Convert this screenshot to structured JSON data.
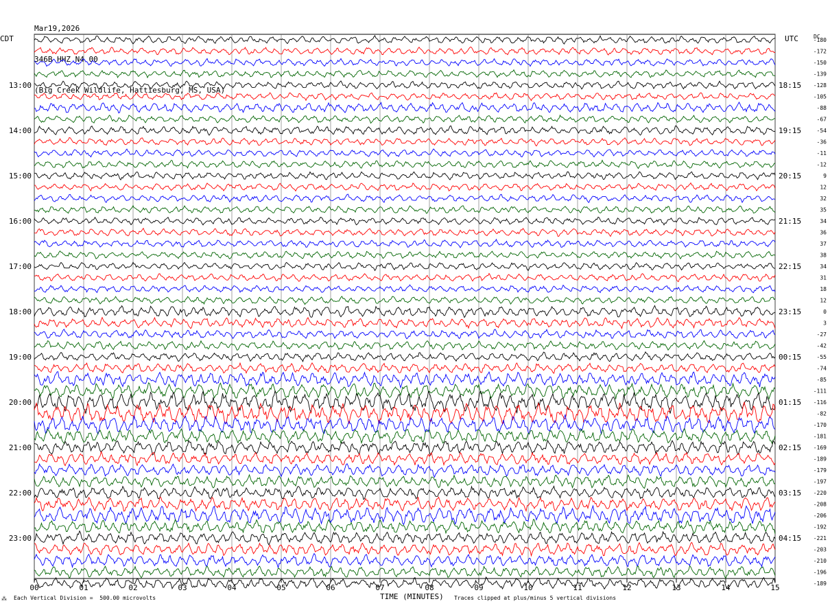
{
  "header": {
    "date": "Mar19,2026",
    "station": "346B HHZ N4 00",
    "location": "(Big Creek Wildlife, Hattiesburg, MS, USA)"
  },
  "left_tz": "CDT",
  "right_tz": "UTC",
  "dc_label": "DC",
  "footer": {
    "division": "Each Vertical Division =  500.00 microvolts",
    "time_label": "TIME (MINUTES)",
    "clip": "Traces clipped at plus/minus 5 vertical divisions"
  },
  "colors": {
    "trace_cycle": [
      "#000000",
      "#ff0000",
      "#0000ff",
      "#006400"
    ],
    "grid": "#000000"
  },
  "chart_data": {
    "type": "line",
    "title": "",
    "xlabel": "TIME (MINUTES)",
    "xlim": [
      0,
      15
    ],
    "x_ticks": [
      "00",
      "01",
      "02",
      "03",
      "04",
      "05",
      "06",
      "07",
      "08",
      "09",
      "10",
      "11",
      "12",
      "13",
      "14",
      "15"
    ],
    "rows_per_hour": 4,
    "minutes_per_row": 15,
    "left_hour_labels": [
      "13:00",
      "14:00",
      "15:00",
      "16:00",
      "17:00",
      "18:00",
      "19:00",
      "20:00",
      "21:00",
      "22:00",
      "23:00"
    ],
    "right_hour_labels": [
      "18:15",
      "19:15",
      "20:15",
      "21:15",
      "22:15",
      "23:15",
      "00:15",
      "01:15",
      "02:15",
      "03:15",
      "04:15"
    ],
    "dc_offsets": [
      "-180",
      "-172",
      "-150",
      "-139",
      "-128",
      "-105",
      "-88",
      "-67",
      "-54",
      "-36",
      "-11",
      "-12",
      "9",
      "12",
      "32",
      "35",
      "34",
      "36",
      "37",
      "38",
      "34",
      "31",
      "18",
      "12",
      "0",
      "3",
      "-27",
      "-42",
      "-55",
      "-74",
      "-85",
      "-111",
      "-116",
      "-82",
      "-170",
      "-181",
      "-169",
      "-189",
      "-179",
      "-197",
      "-220",
      "-208",
      "-206",
      "-192",
      "-221",
      "-203",
      "-210",
      "-196",
      "-189"
    ],
    "row_amplitude": [
      0.3,
      0.3,
      0.3,
      0.3,
      0.3,
      0.3,
      0.4,
      0.3,
      0.35,
      0.3,
      0.3,
      0.3,
      0.3,
      0.3,
      0.3,
      0.3,
      0.3,
      0.3,
      0.3,
      0.3,
      0.3,
      0.3,
      0.3,
      0.3,
      0.45,
      0.4,
      0.35,
      0.35,
      0.35,
      0.4,
      0.6,
      0.6,
      0.8,
      0.8,
      0.7,
      0.6,
      0.55,
      0.5,
      0.5,
      0.5,
      0.5,
      0.55,
      0.7,
      0.55,
      0.5,
      0.5,
      0.5,
      0.45,
      0.45
    ]
  }
}
